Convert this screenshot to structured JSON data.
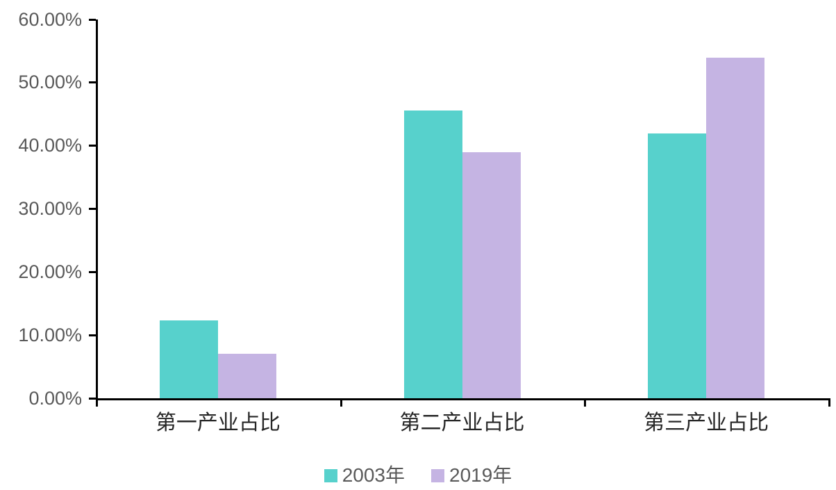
{
  "chart_data": {
    "type": "bar",
    "title": "",
    "xlabel": "",
    "ylabel": "",
    "categories": [
      "第一产业占比",
      "第二产业占比",
      "第三产业占比"
    ],
    "series": [
      {
        "name": "2003年",
        "color": "#57D1CC",
        "values": [
          12.3,
          45.6,
          42.0
        ]
      },
      {
        "name": "2019年",
        "color": "#C5B4E3",
        "values": [
          7.1,
          39.0,
          53.9
        ]
      }
    ],
    "ylim": [
      0,
      60
    ],
    "ytick_step": 10,
    "yticks": [
      {
        "value": 0,
        "label": "0.00%"
      },
      {
        "value": 10,
        "label": "10.00%"
      },
      {
        "value": 20,
        "label": "20.00%"
      },
      {
        "value": 30,
        "label": "30.00%"
      },
      {
        "value": 40,
        "label": "40.00%"
      },
      {
        "value": 50,
        "label": "50.00%"
      },
      {
        "value": 60,
        "label": "60.00%"
      }
    ],
    "value_format": "percent",
    "grid": false,
    "legend_position": "bottom"
  },
  "colors": {
    "background": "#FFFFFF",
    "axis": "#000000",
    "y_tick_text": "#595959",
    "x_tick_text": "#262626",
    "legend_text": "#595959",
    "series_2003": "#57D1CC",
    "series_2019": "#C5B4E3"
  }
}
